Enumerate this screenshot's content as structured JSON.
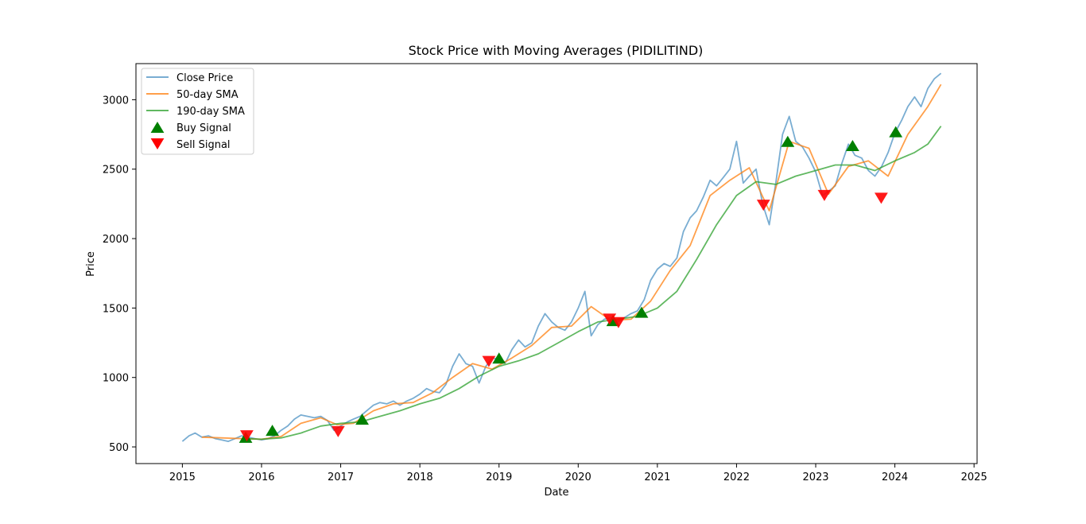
{
  "colors": {
    "close": "#1f77b4",
    "sma50": "#ff7f0e",
    "sma190": "#2ca02c",
    "buy": "#008000",
    "sell": "#ff0000"
  },
  "chart_data": {
    "type": "line",
    "title": "Stock Price with Moving Averages (PIDILITIND)",
    "xlabel": "Date",
    "ylabel": "Price",
    "xlim": [
      "2014-06-01",
      "2025-01-15"
    ],
    "ylim": [
      380,
      3260
    ],
    "x_ticks": [
      "2015",
      "2016",
      "2017",
      "2018",
      "2019",
      "2020",
      "2021",
      "2022",
      "2023",
      "2024",
      "2025"
    ],
    "y_ticks": [
      "500",
      "1000",
      "1500",
      "2000",
      "2500",
      "3000"
    ],
    "grid": false,
    "legend_position": "upper left",
    "legend": [
      {
        "label": "Close Price",
        "kind": "line",
        "color": "#1f77b4"
      },
      {
        "label": "50-day SMA",
        "kind": "line",
        "color": "#ff7f0e"
      },
      {
        "label": "190-day SMA",
        "kind": "line",
        "color": "#2ca02c"
      },
      {
        "label": "Buy Signal",
        "kind": "up",
        "color": "#008000"
      },
      {
        "label": "Sell Signal",
        "kind": "down",
        "color": "#ff0000"
      }
    ],
    "series": [
      {
        "name": "Close Price",
        "color": "#1f77b4",
        "points": [
          [
            "2015-01-01",
            540
          ],
          [
            "2015-02-01",
            580
          ],
          [
            "2015-03-01",
            600
          ],
          [
            "2015-04-01",
            570
          ],
          [
            "2015-05-01",
            580
          ],
          [
            "2015-06-01",
            560
          ],
          [
            "2015-07-01",
            550
          ],
          [
            "2015-08-01",
            540
          ],
          [
            "2015-09-01",
            560
          ],
          [
            "2015-10-01",
            580
          ],
          [
            "2015-11-01",
            570
          ],
          [
            "2015-12-01",
            560
          ],
          [
            "2016-01-01",
            550
          ],
          [
            "2016-02-01",
            560
          ],
          [
            "2016-03-01",
            580
          ],
          [
            "2016-04-01",
            620
          ],
          [
            "2016-05-01",
            650
          ],
          [
            "2016-06-01",
            700
          ],
          [
            "2016-07-01",
            730
          ],
          [
            "2016-08-01",
            720
          ],
          [
            "2016-09-01",
            710
          ],
          [
            "2016-10-01",
            720
          ],
          [
            "2016-11-01",
            690
          ],
          [
            "2016-12-01",
            620
          ],
          [
            "2017-01-01",
            650
          ],
          [
            "2017-02-01",
            680
          ],
          [
            "2017-03-01",
            700
          ],
          [
            "2017-04-01",
            720
          ],
          [
            "2017-05-01",
            760
          ],
          [
            "2017-06-01",
            800
          ],
          [
            "2017-07-01",
            820
          ],
          [
            "2017-08-01",
            810
          ],
          [
            "2017-09-01",
            830
          ],
          [
            "2017-10-01",
            800
          ],
          [
            "2017-11-01",
            830
          ],
          [
            "2017-12-01",
            850
          ],
          [
            "2018-01-01",
            880
          ],
          [
            "2018-02-01",
            920
          ],
          [
            "2018-03-01",
            900
          ],
          [
            "2018-04-01",
            890
          ],
          [
            "2018-05-01",
            950
          ],
          [
            "2018-06-01",
            1080
          ],
          [
            "2018-07-01",
            1170
          ],
          [
            "2018-08-01",
            1100
          ],
          [
            "2018-09-01",
            1080
          ],
          [
            "2018-10-01",
            960
          ],
          [
            "2018-11-01",
            1080
          ],
          [
            "2018-12-01",
            1140
          ],
          [
            "2019-01-01",
            1130
          ],
          [
            "2019-02-01",
            1110
          ],
          [
            "2019-03-01",
            1200
          ],
          [
            "2019-04-01",
            1270
          ],
          [
            "2019-05-01",
            1220
          ],
          [
            "2019-06-01",
            1250
          ],
          [
            "2019-07-01",
            1370
          ],
          [
            "2019-08-01",
            1460
          ],
          [
            "2019-09-01",
            1400
          ],
          [
            "2019-10-01",
            1360
          ],
          [
            "2019-11-01",
            1340
          ],
          [
            "2019-12-01",
            1400
          ],
          [
            "2020-01-01",
            1500
          ],
          [
            "2020-02-01",
            1620
          ],
          [
            "2020-03-01",
            1300
          ],
          [
            "2020-04-01",
            1380
          ],
          [
            "2020-05-01",
            1420
          ],
          [
            "2020-06-01",
            1430
          ],
          [
            "2020-07-01",
            1400
          ],
          [
            "2020-08-01",
            1430
          ],
          [
            "2020-09-01",
            1460
          ],
          [
            "2020-10-01",
            1480
          ],
          [
            "2020-11-01",
            1560
          ],
          [
            "2020-12-01",
            1700
          ],
          [
            "2021-01-01",
            1780
          ],
          [
            "2021-02-01",
            1820
          ],
          [
            "2021-03-01",
            1800
          ],
          [
            "2021-04-01",
            1860
          ],
          [
            "2021-05-01",
            2050
          ],
          [
            "2021-06-01",
            2150
          ],
          [
            "2021-07-01",
            2200
          ],
          [
            "2021-08-01",
            2300
          ],
          [
            "2021-09-01",
            2420
          ],
          [
            "2021-10-01",
            2380
          ],
          [
            "2021-11-01",
            2440
          ],
          [
            "2021-12-01",
            2500
          ],
          [
            "2022-01-01",
            2700
          ],
          [
            "2022-02-01",
            2400
          ],
          [
            "2022-03-01",
            2450
          ],
          [
            "2022-04-01",
            2500
          ],
          [
            "2022-05-01",
            2250
          ],
          [
            "2022-06-01",
            2100
          ],
          [
            "2022-07-01",
            2400
          ],
          [
            "2022-08-01",
            2750
          ],
          [
            "2022-09-01",
            2880
          ],
          [
            "2022-10-01",
            2700
          ],
          [
            "2022-11-01",
            2660
          ],
          [
            "2022-12-01",
            2580
          ],
          [
            "2023-01-01",
            2480
          ],
          [
            "2023-02-01",
            2310
          ],
          [
            "2023-03-01",
            2340
          ],
          [
            "2023-04-01",
            2380
          ],
          [
            "2023-05-01",
            2540
          ],
          [
            "2023-06-01",
            2680
          ],
          [
            "2023-07-01",
            2600
          ],
          [
            "2023-08-01",
            2580
          ],
          [
            "2023-09-01",
            2490
          ],
          [
            "2023-10-01",
            2450
          ],
          [
            "2023-11-01",
            2520
          ],
          [
            "2023-12-01",
            2620
          ],
          [
            "2024-01-01",
            2760
          ],
          [
            "2024-02-01",
            2850
          ],
          [
            "2024-03-01",
            2950
          ],
          [
            "2024-04-01",
            3020
          ],
          [
            "2024-05-01",
            2950
          ],
          [
            "2024-06-01",
            3080
          ],
          [
            "2024-07-01",
            3150
          ],
          [
            "2024-08-01",
            3190
          ]
        ]
      },
      {
        "name": "50-day SMA",
        "color": "#ff7f0e",
        "points": [
          [
            "2015-04-01",
            570
          ],
          [
            "2015-07-01",
            565
          ],
          [
            "2015-10-01",
            560
          ],
          [
            "2016-01-01",
            555
          ],
          [
            "2016-04-01",
            575
          ],
          [
            "2016-07-01",
            670
          ],
          [
            "2016-10-01",
            710
          ],
          [
            "2016-12-15",
            660
          ],
          [
            "2017-03-01",
            670
          ],
          [
            "2017-06-01",
            760
          ],
          [
            "2017-09-01",
            810
          ],
          [
            "2017-12-01",
            820
          ],
          [
            "2018-03-01",
            890
          ],
          [
            "2018-06-01",
            1000
          ],
          [
            "2018-09-01",
            1100
          ],
          [
            "2018-12-01",
            1060
          ],
          [
            "2019-03-01",
            1140
          ],
          [
            "2019-06-01",
            1230
          ],
          [
            "2019-09-01",
            1360
          ],
          [
            "2019-12-01",
            1370
          ],
          [
            "2020-03-01",
            1510
          ],
          [
            "2020-06-01",
            1410
          ],
          [
            "2020-09-01",
            1420
          ],
          [
            "2020-12-01",
            1550
          ],
          [
            "2021-03-01",
            1770
          ],
          [
            "2021-06-01",
            1950
          ],
          [
            "2021-09-01",
            2310
          ],
          [
            "2021-12-01",
            2420
          ],
          [
            "2022-03-01",
            2510
          ],
          [
            "2022-06-01",
            2200
          ],
          [
            "2022-09-01",
            2700
          ],
          [
            "2022-12-01",
            2650
          ],
          [
            "2023-03-01",
            2320
          ],
          [
            "2023-06-01",
            2520
          ],
          [
            "2023-09-01",
            2560
          ],
          [
            "2023-12-01",
            2450
          ],
          [
            "2024-03-01",
            2750
          ],
          [
            "2024-06-01",
            2950
          ],
          [
            "2024-08-01",
            3110
          ]
        ]
      },
      {
        "name": "190-day SMA",
        "color": "#2ca02c",
        "points": [
          [
            "2015-10-01",
            560
          ],
          [
            "2016-01-01",
            555
          ],
          [
            "2016-04-01",
            565
          ],
          [
            "2016-07-01",
            600
          ],
          [
            "2016-10-01",
            650
          ],
          [
            "2017-01-01",
            670
          ],
          [
            "2017-04-01",
            680
          ],
          [
            "2017-07-01",
            720
          ],
          [
            "2017-10-01",
            760
          ],
          [
            "2018-01-01",
            810
          ],
          [
            "2018-04-01",
            850
          ],
          [
            "2018-07-01",
            920
          ],
          [
            "2018-10-01",
            1010
          ],
          [
            "2019-01-01",
            1080
          ],
          [
            "2019-04-01",
            1120
          ],
          [
            "2019-07-01",
            1170
          ],
          [
            "2019-10-01",
            1250
          ],
          [
            "2020-01-01",
            1330
          ],
          [
            "2020-04-01",
            1400
          ],
          [
            "2020-07-01",
            1420
          ],
          [
            "2020-10-01",
            1440
          ],
          [
            "2021-01-01",
            1500
          ],
          [
            "2021-04-01",
            1620
          ],
          [
            "2021-07-01",
            1850
          ],
          [
            "2021-10-01",
            2100
          ],
          [
            "2022-01-01",
            2310
          ],
          [
            "2022-04-01",
            2410
          ],
          [
            "2022-07-01",
            2390
          ],
          [
            "2022-10-01",
            2450
          ],
          [
            "2023-01-01",
            2490
          ],
          [
            "2023-04-01",
            2530
          ],
          [
            "2023-07-01",
            2530
          ],
          [
            "2023-10-01",
            2490
          ],
          [
            "2024-01-01",
            2560
          ],
          [
            "2024-04-01",
            2620
          ],
          [
            "2024-06-01",
            2680
          ],
          [
            "2024-08-01",
            2810
          ]
        ]
      }
    ],
    "buy_signals": [
      [
        "2015-10-20",
        570
      ],
      [
        "2016-02-20",
        620
      ],
      [
        "2017-04-10",
        700
      ],
      [
        "2019-01-01",
        1140
      ],
      [
        "2020-06-10",
        1410
      ],
      [
        "2020-10-20",
        1470
      ],
      [
        "2022-08-25",
        2700
      ],
      [
        "2023-06-20",
        2670
      ],
      [
        "2024-01-05",
        2770
      ]
    ],
    "sell_signals": [
      [
        "2015-10-25",
        580
      ],
      [
        "2016-12-20",
        610
      ],
      [
        "2018-11-15",
        1115
      ],
      [
        "2020-05-25",
        1420
      ],
      [
        "2020-07-05",
        1395
      ],
      [
        "2022-05-05",
        2240
      ],
      [
        "2023-02-10",
        2310
      ],
      [
        "2023-10-30",
        2290
      ]
    ]
  }
}
